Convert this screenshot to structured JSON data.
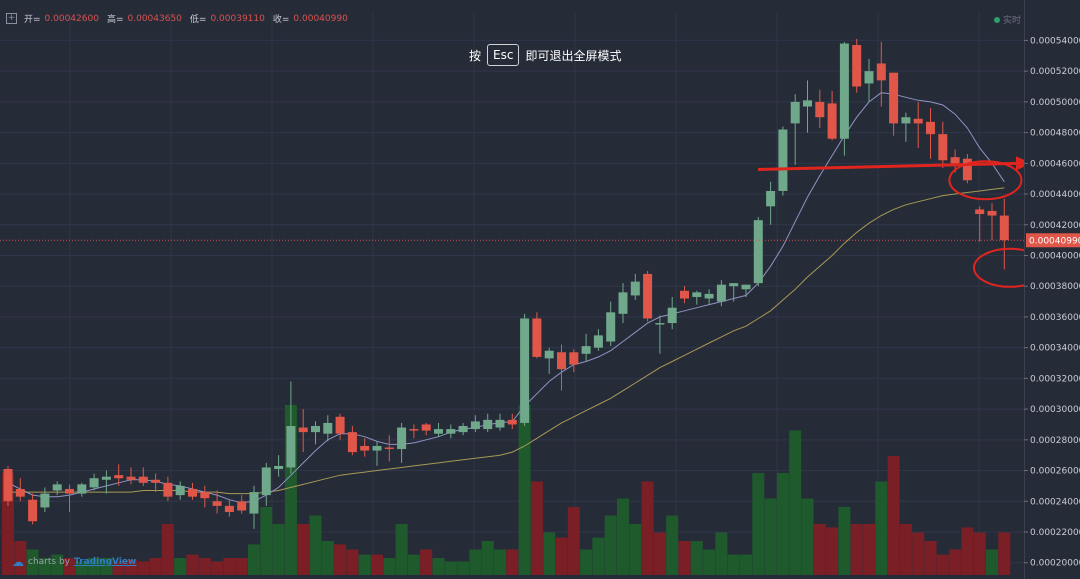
{
  "header": {
    "open_label": "开=",
    "open_value": "0.00042600",
    "high_label": "高=",
    "high_value": "0.00043650",
    "low_label": "低=",
    "low_value": "0.00039110",
    "close_label": "收=",
    "close_value": "0.00040990",
    "live_label": "实时"
  },
  "fullscreen_hint": {
    "prefix": "按",
    "key": "Esc",
    "suffix": "即可退出全屏模式"
  },
  "brand": {
    "prefix": "charts by",
    "name": "TradingView"
  },
  "colors": {
    "background": "#262b38",
    "up": "#6fa88a",
    "down": "#e0574a",
    "volume_up": "#1f5a2c",
    "volume_down": "#7a1f26",
    "ma_fast": "#8f94c4",
    "ma_slow": "#a69a55",
    "annotation": "#e0251f"
  },
  "chart_data": {
    "type": "candlestick",
    "y_axis": {
      "position": "right",
      "ylim": [
        0.000192,
        0.000552
      ],
      "ticks": [
        "0.00054000",
        "0.00052000",
        "0.00050000",
        "0.00048000",
        "0.00046000",
        "0.00044000",
        "0.00042000",
        "0.00040000",
        "0.00038000",
        "0.00036000",
        "0.00034000",
        "0.00032000",
        "0.00030000",
        "0.00028000",
        "0.00026000",
        "0.00024000",
        "0.00022000",
        "0.00020000"
      ],
      "current_price_label": "0.00040990",
      "current_price": 0.0004099
    },
    "grid": true,
    "candles": [
      {
        "o": 0.000261,
        "h": 0.000263,
        "l": 0.000237,
        "c": 0.00024
      },
      {
        "o": 0.000248,
        "h": 0.000255,
        "l": 0.00024,
        "c": 0.000243
      },
      {
        "o": 0.000241,
        "h": 0.000245,
        "l": 0.000225,
        "c": 0.000227
      },
      {
        "o": 0.000236,
        "h": 0.000249,
        "l": 0.000233,
        "c": 0.000245
      },
      {
        "o": 0.000247,
        "h": 0.000253,
        "l": 0.000244,
        "c": 0.000251
      },
      {
        "o": 0.000248,
        "h": 0.000251,
        "l": 0.000233,
        "c": 0.000245
      },
      {
        "o": 0.000245,
        "h": 0.000252,
        "l": 0.000243,
        "c": 0.000251
      },
      {
        "o": 0.000249,
        "h": 0.000258,
        "l": 0.000247,
        "c": 0.000255
      },
      {
        "o": 0.000254,
        "h": 0.00026,
        "l": 0.000245,
        "c": 0.000256
      },
      {
        "o": 0.000257,
        "h": 0.000264,
        "l": 0.00025,
        "c": 0.000255
      },
      {
        "o": 0.000256,
        "h": 0.000262,
        "l": 0.000251,
        "c": 0.000254
      },
      {
        "o": 0.000256,
        "h": 0.000262,
        "l": 0.00025,
        "c": 0.000252
      },
      {
        "o": 0.000254,
        "h": 0.000258,
        "l": 0.000246,
        "c": 0.000252
      },
      {
        "o": 0.000252,
        "h": 0.000256,
        "l": 0.00024,
        "c": 0.000243
      },
      {
        "o": 0.000244,
        "h": 0.000253,
        "l": 0.000241,
        "c": 0.00025
      },
      {
        "o": 0.000248,
        "h": 0.000252,
        "l": 0.000241,
        "c": 0.000243
      },
      {
        "o": 0.000246,
        "h": 0.00025,
        "l": 0.000236,
        "c": 0.000242
      },
      {
        "o": 0.00024,
        "h": 0.000247,
        "l": 0.000232,
        "c": 0.000237
      },
      {
        "o": 0.000237,
        "h": 0.000241,
        "l": 0.00023,
        "c": 0.000233
      },
      {
        "o": 0.00024,
        "h": 0.000244,
        "l": 0.000232,
        "c": 0.000234
      },
      {
        "o": 0.000232,
        "h": 0.00025,
        "l": 0.000222,
        "c": 0.000246
      },
      {
        "o": 0.000244,
        "h": 0.000265,
        "l": 0.000237,
        "c": 0.000262
      },
      {
        "o": 0.000261,
        "h": 0.00027,
        "l": 0.000256,
        "c": 0.000263
      },
      {
        "o": 0.000262,
        "h": 0.000318,
        "l": 0.000258,
        "c": 0.000289
      },
      {
        "o": 0.000288,
        "h": 0.0003,
        "l": 0.000272,
        "c": 0.000285
      },
      {
        "o": 0.000285,
        "h": 0.000292,
        "l": 0.000277,
        "c": 0.000289
      },
      {
        "o": 0.000284,
        "h": 0.000296,
        "l": 0.000279,
        "c": 0.000291
      },
      {
        "o": 0.000295,
        "h": 0.000297,
        "l": 0.00028,
        "c": 0.000284
      },
      {
        "o": 0.000285,
        "h": 0.000289,
        "l": 0.00027,
        "c": 0.000272
      },
      {
        "o": 0.000276,
        "h": 0.000281,
        "l": 0.000269,
        "c": 0.000273
      },
      {
        "o": 0.000273,
        "h": 0.000279,
        "l": 0.000263,
        "c": 0.000276
      },
      {
        "o": 0.000275,
        "h": 0.000283,
        "l": 0.000266,
        "c": 0.000274
      },
      {
        "o": 0.000274,
        "h": 0.000291,
        "l": 0.000265,
        "c": 0.000288
      },
      {
        "o": 0.000287,
        "h": 0.00029,
        "l": 0.000281,
        "c": 0.000286
      },
      {
        "o": 0.00029,
        "h": 0.000291,
        "l": 0.000283,
        "c": 0.000286
      },
      {
        "o": 0.000284,
        "h": 0.000291,
        "l": 0.000282,
        "c": 0.000287
      },
      {
        "o": 0.000284,
        "h": 0.00029,
        "l": 0.000281,
        "c": 0.000287
      },
      {
        "o": 0.000285,
        "h": 0.000291,
        "l": 0.000283,
        "c": 0.000289
      },
      {
        "o": 0.000287,
        "h": 0.000296,
        "l": 0.000285,
        "c": 0.000292
      },
      {
        "o": 0.000287,
        "h": 0.000297,
        "l": 0.000285,
        "c": 0.000293
      },
      {
        "o": 0.000288,
        "h": 0.000297,
        "l": 0.000286,
        "c": 0.000293
      },
      {
        "o": 0.000293,
        "h": 0.000297,
        "l": 0.000287,
        "c": 0.00029
      },
      {
        "o": 0.000291,
        "h": 0.000362,
        "l": 0.000289,
        "c": 0.000359
      },
      {
        "o": 0.000359,
        "h": 0.000363,
        "l": 0.000333,
        "c": 0.000334
      },
      {
        "o": 0.000333,
        "h": 0.00034,
        "l": 0.000323,
        "c": 0.000338
      },
      {
        "o": 0.000337,
        "h": 0.000342,
        "l": 0.000312,
        "c": 0.000326
      },
      {
        "o": 0.000337,
        "h": 0.000339,
        "l": 0.000324,
        "c": 0.000329
      },
      {
        "o": 0.000336,
        "h": 0.000349,
        "l": 0.000331,
        "c": 0.000341
      },
      {
        "o": 0.00034,
        "h": 0.000352,
        "l": 0.000338,
        "c": 0.000348
      },
      {
        "o": 0.000344,
        "h": 0.00037,
        "l": 0.000341,
        "c": 0.000363
      },
      {
        "o": 0.000362,
        "h": 0.000382,
        "l": 0.000356,
        "c": 0.000376
      },
      {
        "o": 0.000374,
        "h": 0.000388,
        "l": 0.000371,
        "c": 0.000383
      },
      {
        "o": 0.000388,
        "h": 0.00039,
        "l": 0.000357,
        "c": 0.000359
      },
      {
        "o": 0.000356,
        "h": 0.000361,
        "l": 0.000336,
        "c": 0.000356
      },
      {
        "o": 0.000356,
        "h": 0.000373,
        "l": 0.000352,
        "c": 0.000366
      },
      {
        "o": 0.000377,
        "h": 0.00038,
        "l": 0.000369,
        "c": 0.000372
      },
      {
        "o": 0.000373,
        "h": 0.000377,
        "l": 0.000368,
        "c": 0.000376
      },
      {
        "o": 0.000372,
        "h": 0.000378,
        "l": 0.000368,
        "c": 0.000375
      },
      {
        "o": 0.00037,
        "h": 0.000384,
        "l": 0.000367,
        "c": 0.000381
      },
      {
        "o": 0.00038,
        "h": 0.000382,
        "l": 0.00037,
        "c": 0.000382
      },
      {
        "o": 0.000378,
        "h": 0.000381,
        "l": 0.000373,
        "c": 0.000381
      },
      {
        "o": 0.000382,
        "h": 0.000425,
        "l": 0.00038,
        "c": 0.000423
      },
      {
        "o": 0.000432,
        "h": 0.000448,
        "l": 0.00042,
        "c": 0.000442
      },
      {
        "o": 0.000442,
        "h": 0.000484,
        "l": 0.000439,
        "c": 0.000482
      },
      {
        "o": 0.000486,
        "h": 0.000505,
        "l": 0.000459,
        "c": 0.0005
      },
      {
        "o": 0.000497,
        "h": 0.000514,
        "l": 0.00048,
        "c": 0.000501
      },
      {
        "o": 0.0005,
        "h": 0.000508,
        "l": 0.000483,
        "c": 0.00049
      },
      {
        "o": 0.000499,
        "h": 0.000507,
        "l": 0.000475,
        "c": 0.000476
      },
      {
        "o": 0.000476,
        "h": 0.000539,
        "l": 0.000465,
        "c": 0.000538
      },
      {
        "o": 0.000537,
        "h": 0.000541,
        "l": 0.000506,
        "c": 0.00051
      },
      {
        "o": 0.000512,
        "h": 0.000528,
        "l": 0.0005,
        "c": 0.00052
      },
      {
        "o": 0.000525,
        "h": 0.000539,
        "l": 0.000497,
        "c": 0.000514
      },
      {
        "o": 0.000519,
        "h": 0.000519,
        "l": 0.000478,
        "c": 0.000486
      },
      {
        "o": 0.000486,
        "h": 0.000493,
        "l": 0.000474,
        "c": 0.00049
      },
      {
        "o": 0.000489,
        "h": 0.0005,
        "l": 0.00047,
        "c": 0.000486
      },
      {
        "o": 0.000487,
        "h": 0.000496,
        "l": 0.000463,
        "c": 0.000479
      },
      {
        "o": 0.000479,
        "h": 0.000487,
        "l": 0.000457,
        "c": 0.000462
      },
      {
        "o": 0.000464,
        "h": 0.000469,
        "l": 0.000454,
        "c": 0.00046
      },
      {
        "o": 0.000463,
        "h": 0.000466,
        "l": 0.000447,
        "c": 0.000449
      },
      {
        "o": 0.00043,
        "h": 0.000432,
        "l": 0.000409,
        "c": 0.000427
      },
      {
        "o": 0.000429,
        "h": 0.000434,
        "l": 0.00041,
        "c": 0.000426
      },
      {
        "o": 0.000426,
        "h": 0.000437,
        "l": 0.000391,
        "c": 0.00041
      }
    ],
    "volume": [
      {
        "v": 0.6,
        "up": false
      },
      {
        "v": 0.2,
        "up": false
      },
      {
        "v": 0.15,
        "up": true
      },
      {
        "v": 0.1,
        "up": true
      },
      {
        "v": 0.12,
        "up": true
      },
      {
        "v": 0.1,
        "up": false
      },
      {
        "v": 0.08,
        "up": true
      },
      {
        "v": 0.1,
        "up": true
      },
      {
        "v": 0.1,
        "up": true
      },
      {
        "v": 0.08,
        "up": false
      },
      {
        "v": 0.09,
        "up": false
      },
      {
        "v": 0.08,
        "up": false
      },
      {
        "v": 0.1,
        "up": false
      },
      {
        "v": 0.3,
        "up": false
      },
      {
        "v": 0.1,
        "up": true
      },
      {
        "v": 0.12,
        "up": false
      },
      {
        "v": 0.1,
        "up": false
      },
      {
        "v": 0.08,
        "up": false
      },
      {
        "v": 0.1,
        "up": false
      },
      {
        "v": 0.1,
        "up": false
      },
      {
        "v": 0.18,
        "up": true
      },
      {
        "v": 0.4,
        "up": true
      },
      {
        "v": 0.3,
        "up": true
      },
      {
        "v": 1.0,
        "up": true
      },
      {
        "v": 0.3,
        "up": false
      },
      {
        "v": 0.35,
        "up": true
      },
      {
        "v": 0.2,
        "up": true
      },
      {
        "v": 0.18,
        "up": false
      },
      {
        "v": 0.15,
        "up": false
      },
      {
        "v": 0.12,
        "up": true
      },
      {
        "v": 0.12,
        "up": false
      },
      {
        "v": 0.1,
        "up": true
      },
      {
        "v": 0.3,
        "up": true
      },
      {
        "v": 0.12,
        "up": true
      },
      {
        "v": 0.15,
        "up": false
      },
      {
        "v": 0.1,
        "up": true
      },
      {
        "v": 0.08,
        "up": true
      },
      {
        "v": 0.08,
        "up": true
      },
      {
        "v": 0.15,
        "up": true
      },
      {
        "v": 0.2,
        "up": true
      },
      {
        "v": 0.15,
        "up": true
      },
      {
        "v": 0.15,
        "up": false
      },
      {
        "v": 1.0,
        "up": true
      },
      {
        "v": 0.55,
        "up": false
      },
      {
        "v": 0.25,
        "up": true
      },
      {
        "v": 0.22,
        "up": false
      },
      {
        "v": 0.4,
        "up": false
      },
      {
        "v": 0.15,
        "up": true
      },
      {
        "v": 0.22,
        "up": true
      },
      {
        "v": 0.35,
        "up": true
      },
      {
        "v": 0.45,
        "up": true
      },
      {
        "v": 0.3,
        "up": true
      },
      {
        "v": 0.55,
        "up": false
      },
      {
        "v": 0.25,
        "up": false
      },
      {
        "v": 0.35,
        "up": true
      },
      {
        "v": 0.2,
        "up": false
      },
      {
        "v": 0.2,
        "up": true
      },
      {
        "v": 0.15,
        "up": true
      },
      {
        "v": 0.25,
        "up": true
      },
      {
        "v": 0.12,
        "up": true
      },
      {
        "v": 0.12,
        "up": true
      },
      {
        "v": 0.6,
        "up": true
      },
      {
        "v": 0.45,
        "up": true
      },
      {
        "v": 0.6,
        "up": true
      },
      {
        "v": 0.85,
        "up": true
      },
      {
        "v": 0.45,
        "up": true
      },
      {
        "v": 0.3,
        "up": false
      },
      {
        "v": 0.28,
        "up": false
      },
      {
        "v": 0.4,
        "up": true
      },
      {
        "v": 0.3,
        "up": false
      },
      {
        "v": 0.3,
        "up": false
      },
      {
        "v": 0.55,
        "up": true
      },
      {
        "v": 0.7,
        "up": false
      },
      {
        "v": 0.3,
        "up": false
      },
      {
        "v": 0.25,
        "up": false
      },
      {
        "v": 0.2,
        "up": false
      },
      {
        "v": 0.12,
        "up": false
      },
      {
        "v": 0.15,
        "up": false
      },
      {
        "v": 0.28,
        "up": false
      },
      {
        "v": 0.25,
        "up": false
      },
      {
        "v": 0.15,
        "up": true
      },
      {
        "v": 0.25,
        "up": false
      }
    ],
    "ma_fast": [
      0.000252,
      0.000248,
      0.000244,
      0.000243,
      0.000243,
      0.000244,
      0.000246,
      0.000248,
      0.00025,
      0.000252,
      0.000254,
      0.000254,
      0.000253,
      0.000251,
      0.00025,
      0.000248,
      0.000246,
      0.000244,
      0.000241,
      0.000239,
      0.00024,
      0.000244,
      0.000249,
      0.000257,
      0.000265,
      0.000273,
      0.00028,
      0.000284,
      0.000284,
      0.000282,
      0.000279,
      0.000277,
      0.000277,
      0.000278,
      0.00028,
      0.000282,
      0.000285,
      0.000287,
      0.000288,
      0.00029,
      0.000291,
      0.000292,
      0.000302,
      0.00031,
      0.000318,
      0.000324,
      0.000329,
      0.000331,
      0.000334,
      0.000338,
      0.000344,
      0.00035,
      0.000356,
      0.00036,
      0.000362,
      0.000364,
      0.000366,
      0.000368,
      0.00037,
      0.000372,
      0.000374,
      0.000382,
      0.000393,
      0.000406,
      0.000422,
      0.000438,
      0.000452,
      0.000465,
      0.000478,
      0.00049,
      0.0005,
      0.000506,
      0.000505,
      0.000503,
      0.000501,
      0.0005,
      0.000498,
      0.000492,
      0.000483,
      0.00047,
      0.00046,
      0.000448
    ],
    "ma_slow": [
      0.000246,
      0.000246,
      0.000246,
      0.000246,
      0.000246,
      0.000246,
      0.000246,
      0.000246,
      0.000246,
      0.000246,
      0.000246,
      0.000247,
      0.000247,
      0.000247,
      0.000247,
      0.000246,
      0.000246,
      0.000246,
      0.000245,
      0.000245,
      0.000245,
      0.000246,
      0.000247,
      0.000249,
      0.000251,
      0.000253,
      0.000255,
      0.000257,
      0.000258,
      0.000259,
      0.00026,
      0.000261,
      0.000262,
      0.000263,
      0.000264,
      0.000265,
      0.000266,
      0.000267,
      0.000268,
      0.000269,
      0.00027,
      0.000272,
      0.000276,
      0.000281,
      0.000286,
      0.000291,
      0.000295,
      0.000299,
      0.000303,
      0.000307,
      0.000312,
      0.000317,
      0.000322,
      0.000327,
      0.000331,
      0.000335,
      0.000339,
      0.000343,
      0.000347,
      0.000351,
      0.000354,
      0.000359,
      0.000364,
      0.000371,
      0.000378,
      0.000386,
      0.000393,
      0.0004,
      0.000408,
      0.000415,
      0.000421,
      0.000426,
      0.00043,
      0.000433,
      0.000435,
      0.000437,
      0.000439,
      0.00044,
      0.000441,
      0.000442,
      0.000443,
      0.000444
    ],
    "annotations": [
      {
        "type": "arrow",
        "from_y": 0.000456,
        "to_y": 0.00046,
        "color": "#e0251f"
      },
      {
        "type": "ellipse",
        "candle_index": 78,
        "y": 0.000449,
        "color": "#e0251f"
      },
      {
        "type": "ellipse",
        "candle_index": 80,
        "y": 0.000392,
        "color": "#e0251f"
      }
    ]
  }
}
